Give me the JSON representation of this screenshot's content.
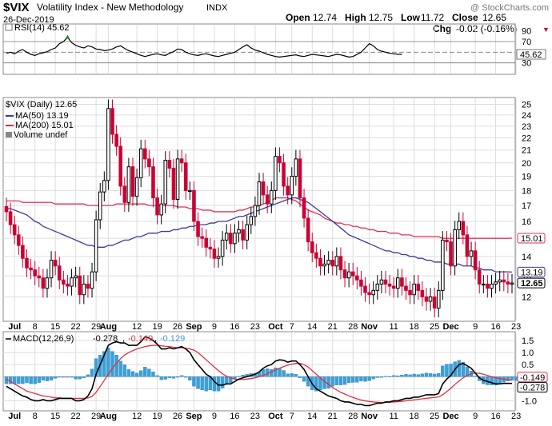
{
  "header": {
    "symbol": "$VIX",
    "name": "Volatility Index - New Methodology",
    "exchange": "INDX",
    "date": "26-Dec-2019",
    "watermark": "@ StockCharts.com",
    "quote": [
      {
        "label": "Open",
        "value": "12.74"
      },
      {
        "label": "High",
        "value": "12.75"
      },
      {
        "label": "Low",
        "value": "11.72"
      },
      {
        "label": "Close",
        "value": "12.65"
      },
      {
        "label": "Chg",
        "value": "-0.02 (-0.16%)"
      }
    ],
    "down_marker": "▼"
  },
  "colors": {
    "up": "#000000",
    "down": "#cc0033",
    "ma50": "#3a3a9c",
    "ma200": "#dd3355",
    "macd_line": "#000000",
    "signal_line": "#e03040",
    "histogram": "#3aa0d8",
    "rsi_line": "#000000",
    "rsi_marker": "#2a8a2a",
    "grid": "#dddddd"
  },
  "chart_data": [
    {
      "type": "line",
      "panel": "rsi",
      "legend": "RSI(14) 45.62",
      "ylim": [
        10,
        100
      ],
      "yticks": [
        30,
        50,
        70,
        90
      ],
      "levels": [
        30,
        50,
        70
      ],
      "current_label": "45.62",
      "values": [
        48,
        50,
        47,
        52,
        55,
        50,
        46,
        44,
        47,
        49,
        51,
        55,
        58,
        66,
        70,
        78,
        68,
        63,
        60,
        58,
        62,
        60,
        56,
        55,
        53,
        54,
        56,
        60,
        62,
        57,
        53,
        50,
        47,
        44,
        42,
        44,
        46,
        47,
        45,
        44,
        48,
        51,
        56,
        55,
        50,
        47,
        45,
        44,
        46,
        47,
        45,
        43,
        42,
        44,
        46,
        48,
        50,
        55,
        60,
        64,
        58,
        54,
        52,
        49,
        46,
        44,
        42,
        41,
        42,
        43,
        44,
        45,
        43,
        42,
        44,
        46,
        45,
        44,
        43,
        42,
        44,
        46,
        45,
        43,
        41,
        42,
        46,
        50,
        58,
        66,
        62,
        55,
        52,
        50,
        48,
        47,
        46,
        46
      ]
    },
    {
      "type": "candlestick",
      "panel": "price",
      "legend": {
        "price": "$VIX (Daily) 12.65",
        "ma50": "MA(50) 13.19",
        "ma200": "MA(200) 15.01",
        "volume": "Volume undef"
      },
      "ylim": [
        11,
        25.5
      ],
      "log_scale": true,
      "yticks": [
        12,
        13,
        14,
        15,
        16,
        17,
        18,
        19,
        20,
        21,
        22,
        23,
        24,
        25
      ],
      "value_tags": [
        {
          "value": 15.01,
          "label": "15.01",
          "kind": "ma200"
        },
        {
          "value": 13.19,
          "label": "13.19",
          "kind": "ma50"
        },
        {
          "value": 12.65,
          "label": "12.65",
          "kind": "price"
        }
      ],
      "x_labels": [
        {
          "label": "Jul",
          "index": 2,
          "bold": true
        },
        {
          "label": "8",
          "index": 7
        },
        {
          "label": "15",
          "index": 12
        },
        {
          "label": "22",
          "index": 17
        },
        {
          "label": "29",
          "index": 22
        },
        {
          "label": "Aug",
          "index": 25,
          "bold": true
        },
        {
          "label": "12",
          "index": 32
        },
        {
          "label": "19",
          "index": 37
        },
        {
          "label": "26",
          "index": 42
        },
        {
          "label": "Sep",
          "index": 46,
          "bold": true
        },
        {
          "label": "9",
          "index": 51
        },
        {
          "label": "16",
          "index": 56
        },
        {
          "label": "23",
          "index": 61
        },
        {
          "label": "Oct",
          "index": 66,
          "bold": true
        },
        {
          "label": "7",
          "index": 70
        },
        {
          "label": "14",
          "index": 75
        },
        {
          "label": "21",
          "index": 80
        },
        {
          "label": "28",
          "index": 85
        },
        {
          "label": "Nov",
          "index": 89,
          "bold": true
        },
        {
          "label": "11",
          "index": 95
        },
        {
          "label": "18",
          "index": 100
        },
        {
          "label": "25",
          "index": 105
        },
        {
          "label": "Dec",
          "index": 109,
          "bold": true
        },
        {
          "label": "9",
          "index": 115
        },
        {
          "label": "16",
          "index": 120
        },
        {
          "label": "23",
          "index": 125
        }
      ],
      "close": [
        16.6,
        15.8,
        15.2,
        14.6,
        13.9,
        13.4,
        13.3,
        13.0,
        12.9,
        12.4,
        12.9,
        13.8,
        13.5,
        12.8,
        12.6,
        12.5,
        12.9,
        13.0,
        12.1,
        12.6,
        12.4,
        13.2,
        16.1,
        17.9,
        18.7,
        24.6,
        22.3,
        21.3,
        18.3,
        17.2,
        19.7,
        17.6,
        18.9,
        21.1,
        20.3,
        19.7,
        17.5,
        16.4,
        17.1,
        20.2,
        19.6,
        17.4,
        20.3,
        20.0,
        18.0,
        18.0,
        16.0,
        15.1,
        15.0,
        14.5,
        14.4,
        13.9,
        14.0,
        14.9,
        15.3,
        14.7,
        15.3,
        15.5,
        14.9,
        15.8,
        16.3,
        17.0,
        18.6,
        17.7,
        17.1,
        18.0,
        20.5,
        20.0,
        18.3,
        17.7,
        19.0,
        20.3,
        17.5,
        16.2,
        14.8,
        14.2,
        13.9,
        13.5,
        13.6,
        13.8,
        13.5,
        14.0,
        13.3,
        12.9,
        13.2,
        13.0,
        12.8,
        12.5,
        12.2,
        12.1,
        12.3,
        12.6,
        12.8,
        12.6,
        12.5,
        12.4,
        12.9,
        12.5,
        12.3,
        12.1,
        12.6,
        12.3,
        12.0,
        11.8,
        12.0,
        11.5,
        12.3,
        14.9,
        14.8,
        13.5,
        15.5,
        16.0,
        15.2,
        14.0,
        14.3,
        13.3,
        12.6,
        12.6,
        12.4,
        12.6,
        12.7,
        12.8,
        12.7,
        12.6,
        12.65
      ],
      "ma50": [
        16.8,
        16.8,
        16.7,
        16.6,
        16.5,
        16.4,
        16.2,
        16.0,
        15.9,
        15.7,
        15.6,
        15.5,
        15.4,
        15.3,
        15.2,
        15.1,
        15.0,
        14.9,
        14.8,
        14.7,
        14.6,
        14.6,
        14.5,
        14.5,
        14.5,
        14.6,
        14.6,
        14.7,
        14.8,
        14.9,
        14.9,
        15.0,
        15.1,
        15.1,
        15.2,
        15.3,
        15.3,
        15.3,
        15.4,
        15.4,
        15.4,
        15.5,
        15.5,
        15.6,
        15.6,
        15.7,
        15.7,
        15.8,
        15.8,
        15.8,
        15.9,
        15.9,
        16.0,
        16.0,
        16.0,
        16.1,
        16.2,
        16.3,
        16.3,
        16.4,
        16.5,
        16.6,
        16.7,
        16.8,
        16.9,
        17.0,
        17.1,
        17.2,
        17.3,
        17.4,
        17.5,
        17.5,
        17.4,
        17.3,
        17.2,
        17.0,
        16.8,
        16.6,
        16.4,
        16.2,
        16.0,
        15.8,
        15.6,
        15.4,
        15.2,
        15.1,
        15.0,
        14.9,
        14.8,
        14.7,
        14.6,
        14.5,
        14.4,
        14.3,
        14.3,
        14.2,
        14.2,
        14.1,
        14.1,
        14.0,
        14.0,
        13.9,
        13.9,
        13.8,
        13.8,
        13.7,
        13.7,
        13.7,
        13.6,
        13.6,
        13.6,
        13.6,
        13.5,
        13.5,
        13.5,
        13.4,
        13.4,
        13.3,
        13.3,
        13.3,
        13.2,
        13.2,
        13.2,
        13.2,
        13.19
      ],
      "ma200": [
        17.3,
        17.3,
        17.3,
        17.3,
        17.2,
        17.2,
        17.2,
        17.2,
        17.2,
        17.2,
        17.2,
        17.2,
        17.1,
        17.1,
        17.1,
        17.1,
        17.1,
        17.1,
        17.1,
        17.1,
        17.0,
        17.0,
        17.0,
        17.0,
        17.0,
        17.0,
        17.0,
        17.1,
        17.1,
        17.1,
        17.1,
        17.1,
        17.1,
        17.1,
        17.1,
        17.0,
        17.0,
        17.0,
        17.0,
        17.0,
        17.0,
        17.0,
        16.9,
        16.9,
        16.9,
        16.8,
        16.8,
        16.8,
        16.7,
        16.7,
        16.7,
        16.6,
        16.6,
        16.6,
        16.6,
        16.6,
        16.6,
        16.7,
        16.7,
        16.8,
        16.9,
        16.9,
        17.0,
        17.1,
        17.2,
        17.3,
        17.5,
        17.5,
        17.5,
        17.5,
        17.4,
        17.3,
        17.1,
        16.9,
        16.7,
        16.6,
        16.5,
        16.4,
        16.2,
        16.1,
        16.0,
        15.9,
        15.9,
        15.8,
        15.8,
        15.7,
        15.7,
        15.6,
        15.6,
        15.5,
        15.5,
        15.4,
        15.4,
        15.4,
        15.3,
        15.3,
        15.3,
        15.2,
        15.2,
        15.2,
        15.1,
        15.1,
        15.1,
        15.1,
        15.1,
        15.1,
        15.1,
        15.0,
        15.0,
        15.0,
        15.0,
        15.0,
        15.0,
        15.0,
        15.0,
        15.0,
        15.0,
        15.0,
        15.0,
        15.0,
        15.0,
        15.0,
        15.0,
        15.0,
        15.01
      ]
    },
    {
      "type": "area",
      "panel": "macd",
      "legend": {
        "title": "MACD(12,26,9)",
        "macd": "-0.278",
        "signal": "-0.149",
        "histogram": "-0.129"
      },
      "ylim": [
        -1.35,
        1.8
      ],
      "yticks": [
        -1.0,
        -0.5,
        0.5,
        1.0,
        1.5
      ],
      "ytick_labels": [
        "-1.0",
        "-0.5",
        "0.5",
        "1.0",
        "1.5"
      ],
      "value_tags": [
        {
          "value": -0.149,
          "label": "-0.149",
          "kind": "signal"
        },
        {
          "value": -0.278,
          "label": "-0.278",
          "kind": "macd"
        }
      ],
      "macd": [
        -0.4,
        -0.5,
        -0.6,
        -0.7,
        -0.8,
        -0.85,
        -0.95,
        -1.0,
        -1.0,
        -0.95,
        -1.0,
        -1.0,
        -0.95,
        -0.9,
        -0.9,
        -0.9,
        -0.9,
        -1.0,
        -1.0,
        -0.95,
        -0.8,
        -0.5,
        0.1,
        0.5,
        0.9,
        1.3,
        1.4,
        1.45,
        1.4,
        1.4,
        1.3,
        1.3,
        1.3,
        1.45,
        1.65,
        1.6,
        1.5,
        1.35,
        1.15,
        1.15,
        1.2,
        1.15,
        1.2,
        1.25,
        1.15,
        1.0,
        0.7,
        0.5,
        0.3,
        0.1,
        0.0,
        -0.2,
        -0.35,
        -0.35,
        -0.3,
        -0.3,
        -0.2,
        -0.1,
        -0.05,
        0.0,
        0.05,
        0.1,
        0.2,
        0.35,
        0.45,
        0.5,
        0.65,
        0.7,
        0.68,
        0.6,
        0.65,
        0.65,
        0.5,
        0.3,
        0.0,
        -0.3,
        -0.5,
        -0.6,
        -0.7,
        -0.8,
        -0.85,
        -0.9,
        -1.0,
        -1.05,
        -1.05,
        -1.1,
        -1.15,
        -1.15,
        -1.2,
        -1.2,
        -1.15,
        -1.1,
        -1.1,
        -1.05,
        -1.05,
        -1.0,
        -1.0,
        -0.95,
        -0.9,
        -0.9,
        -0.85,
        -0.85,
        -0.8,
        -0.75,
        -0.75,
        -0.75,
        -0.7,
        -0.3,
        -0.1,
        0.05,
        0.3,
        0.5,
        0.55,
        0.45,
        0.35,
        0.15,
        -0.05,
        -0.15,
        -0.2,
        -0.25,
        -0.3,
        -0.3,
        -0.28,
        -0.28,
        -0.278
      ],
      "signal": [
        -0.1,
        -0.2,
        -0.3,
        -0.4,
        -0.5,
        -0.6,
        -0.65,
        -0.7,
        -0.75,
        -0.8,
        -0.82,
        -0.85,
        -0.88,
        -0.88,
        -0.9,
        -0.9,
        -0.9,
        -0.9,
        -0.9,
        -0.9,
        -0.88,
        -0.82,
        -0.65,
        -0.4,
        -0.15,
        0.1,
        0.35,
        0.55,
        0.75,
        0.9,
        1.0,
        1.08,
        1.15,
        1.2,
        1.25,
        1.28,
        1.3,
        1.3,
        1.28,
        1.26,
        1.25,
        1.22,
        1.2,
        1.2,
        1.18,
        1.15,
        1.1,
        1.0,
        0.85,
        0.7,
        0.55,
        0.4,
        0.25,
        0.12,
        0.02,
        -0.05,
        -0.1,
        -0.12,
        -0.12,
        -0.1,
        -0.08,
        -0.05,
        0.0,
        0.05,
        0.12,
        0.2,
        0.28,
        0.35,
        0.42,
        0.48,
        0.52,
        0.55,
        0.55,
        0.5,
        0.4,
        0.25,
        0.1,
        -0.05,
        -0.2,
        -0.32,
        -0.45,
        -0.55,
        -0.65,
        -0.72,
        -0.8,
        -0.86,
        -0.92,
        -0.97,
        -1.0,
        -1.03,
        -1.05,
        -1.06,
        -1.07,
        -1.07,
        -1.06,
        -1.05,
        -1.04,
        -1.02,
        -1.0,
        -0.98,
        -0.96,
        -0.94,
        -0.92,
        -0.9,
        -0.88,
        -0.86,
        -0.84,
        -0.75,
        -0.62,
        -0.48,
        -0.32,
        -0.18,
        -0.05,
        0.05,
        0.12,
        0.15,
        0.14,
        0.1,
        0.05,
        0.0,
        -0.05,
        -0.08,
        -0.1,
        -0.12,
        -0.149
      ],
      "histogram": [
        -0.3,
        -0.3,
        -0.3,
        -0.3,
        -0.3,
        -0.25,
        -0.3,
        -0.3,
        -0.25,
        -0.15,
        -0.18,
        -0.15,
        -0.07,
        -0.02,
        0.0,
        0.0,
        0.0,
        -0.1,
        -0.1,
        -0.05,
        0.08,
        0.32,
        0.75,
        0.9,
        1.05,
        1.2,
        1.05,
        0.9,
        0.65,
        0.5,
        0.3,
        0.22,
        0.15,
        0.25,
        0.4,
        0.32,
        0.2,
        0.05,
        -0.13,
        -0.11,
        -0.05,
        -0.07,
        0.0,
        0.05,
        -0.03,
        -0.15,
        -0.4,
        -0.5,
        -0.55,
        -0.6,
        -0.55,
        -0.6,
        -0.6,
        -0.47,
        -0.32,
        -0.25,
        -0.1,
        0.02,
        0.07,
        0.1,
        0.13,
        0.15,
        0.2,
        0.3,
        0.33,
        0.3,
        0.37,
        0.35,
        0.26,
        0.12,
        0.13,
        0.1,
        -0.05,
        -0.2,
        -0.4,
        -0.55,
        -0.6,
        -0.55,
        -0.5,
        -0.48,
        -0.4,
        -0.35,
        -0.35,
        -0.33,
        -0.25,
        -0.24,
        -0.23,
        -0.18,
        -0.2,
        -0.17,
        -0.1,
        -0.04,
        -0.03,
        0.02,
        0.01,
        0.05,
        0.04,
        0.07,
        0.1,
        0.08,
        0.11,
        0.09,
        0.12,
        0.15,
        0.13,
        0.11,
        0.14,
        0.45,
        0.52,
        0.53,
        0.62,
        0.68,
        0.6,
        0.4,
        0.23,
        0.03,
        -0.17,
        -0.3,
        -0.34,
        -0.35,
        -0.35,
        -0.3,
        -0.23,
        -0.18,
        -0.15,
        -0.16,
        -0.129
      ]
    }
  ]
}
